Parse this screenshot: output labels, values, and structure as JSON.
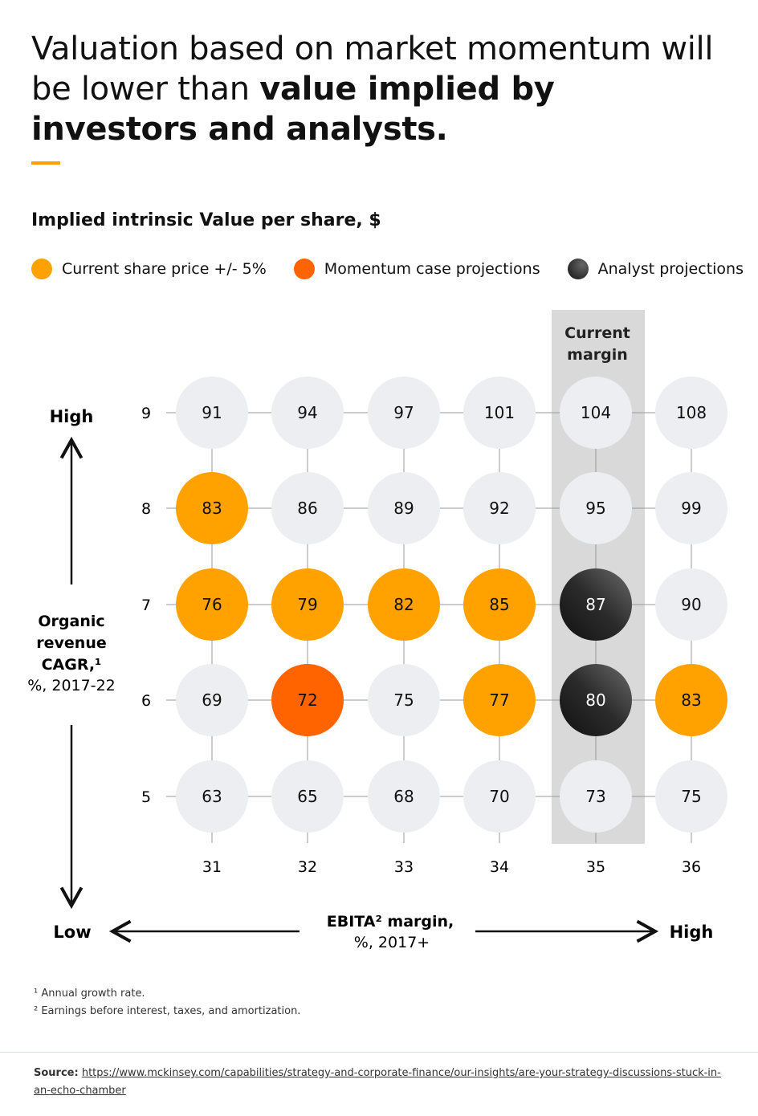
{
  "title": {
    "part1": "Valuation based on market momentum will be lower than ",
    "part2": "value implied by investors and analysts."
  },
  "colors": {
    "accent": "#ffa200",
    "current": "#ffa200",
    "momentum": "#ff6400",
    "analyst": "#2b2b2b",
    "neutral": "#eceef1",
    "band": "#d9d9d9"
  },
  "chart_data": {
    "type": "heatmap",
    "title": "Implied intrinsic Value per share, $",
    "legend": [
      {
        "key": "current",
        "label": "Current share price +/- 5%"
      },
      {
        "key": "momentum",
        "label": "Momentum case projections"
      },
      {
        "key": "analyst",
        "label": "Analyst projections"
      }
    ],
    "x": [
      31,
      32,
      33,
      34,
      35,
      36
    ],
    "y": [
      9,
      8,
      7,
      6,
      5
    ],
    "xlabel": {
      "line1": "EBITA² margin,",
      "line2": "%, 2017+",
      "low": "Low",
      "high": "High"
    },
    "ylabel": {
      "line1": "Organic",
      "line2": "revenue",
      "line3": "CAGR,¹",
      "line4": "%, 2017-22",
      "low": "Low",
      "high": "High"
    },
    "highlight_column": {
      "x": 35,
      "label_line1": "Current",
      "label_line2": "margin"
    },
    "values": [
      [
        91,
        94,
        97,
        101,
        104,
        108
      ],
      [
        83,
        86,
        89,
        92,
        95,
        99
      ],
      [
        76,
        79,
        82,
        85,
        87,
        90
      ],
      [
        69,
        72,
        75,
        77,
        80,
        83
      ],
      [
        63,
        65,
        68,
        70,
        73,
        75
      ]
    ],
    "categories_grid": [
      [
        "n",
        "n",
        "n",
        "n",
        "n",
        "n"
      ],
      [
        "current",
        "n",
        "n",
        "n",
        "n",
        "n"
      ],
      [
        "current",
        "current",
        "current",
        "current",
        "analyst",
        "n"
      ],
      [
        "n",
        "momentum",
        "n",
        "current",
        "analyst",
        "current"
      ],
      [
        "n",
        "n",
        "n",
        "n",
        "n",
        "n"
      ]
    ]
  },
  "footnotes": [
    "¹ Annual growth rate.",
    "² Earnings before interest, taxes, and amortization."
  ],
  "source": {
    "label": "Source:",
    "url": "https://www.mckinsey.com/capabilities/strategy-and-corporate-finance/our-insights/are-your-strategy-discussions-stuck-in-an-echo-chamber"
  }
}
